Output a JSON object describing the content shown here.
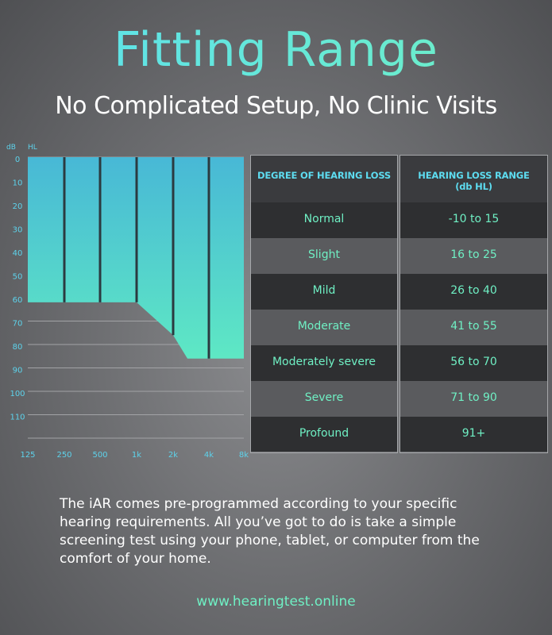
{
  "title": "Fitting Range",
  "subtitle": "No Complicated Setup, No Clinic Visits",
  "chart_data": {
    "type": "area",
    "ylabel": "dB",
    "ylabel_unit": "HL",
    "y_ticks": [
      "0",
      "10",
      "20",
      "30",
      "40",
      "50",
      "60",
      "70",
      "80",
      "90",
      "100",
      "110"
    ],
    "x_ticks": [
      "125",
      "250",
      "500",
      "1k",
      "2k",
      "4k",
      "8k"
    ],
    "ylim": [
      0,
      120
    ],
    "y_inverted": true,
    "series": [
      {
        "x": [
          "125",
          "250",
          "500",
          "1k",
          "2k",
          "3k",
          "4k",
          "8k"
        ],
        "values": [
          62,
          62,
          62,
          62,
          76,
          86,
          86,
          86
        ]
      }
    ],
    "table": {
      "columns": [
        "DEGREE OF HEARING LOSS",
        "HEARING LOSS RANGE (db HL)"
      ],
      "rows": [
        [
          "Normal",
          "-10 to 15"
        ],
        [
          "Slight",
          "16 to 25"
        ],
        [
          "Mild",
          "26 to 40"
        ],
        [
          "Moderate",
          "41 to 55"
        ],
        [
          "Moderately severe",
          "56 to 70"
        ],
        [
          "Severe",
          "71 to 90"
        ],
        [
          "Profound",
          "91+"
        ]
      ]
    }
  },
  "description": "The iAR comes pre-programmed according to your specific hearing requirements. All you’ve got to do is take a simple screening test using your phone, tablet, or computer from the comfort of your home.",
  "website": "www.hearingtest.online",
  "colors": {
    "accent_cyan": "#5dd3ec",
    "accent_mint": "#6ff0c4",
    "area_top": "#48b8d6",
    "area_bottom": "#5ee8c4"
  }
}
